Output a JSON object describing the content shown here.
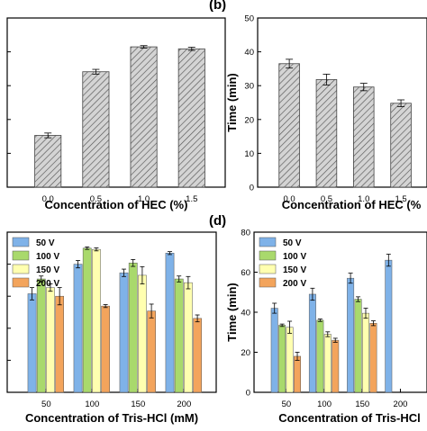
{
  "chart_data": [
    {
      "panel": "a",
      "type": "bar",
      "panel_label": "",
      "xlabel": "Concentration of HEC (%)",
      "ylabel": "",
      "categories": [
        "0.0",
        "0.5",
        "1.0",
        "1.5"
      ],
      "values": [
        2.6,
        5.8,
        7.05,
        6.95
      ],
      "errors": [
        0.12,
        0.12,
        0.06,
        0.08
      ],
      "ylim": [
        0,
        8.5
      ],
      "yticks": [],
      "fill": "hatched-gray"
    },
    {
      "panel": "b",
      "type": "bar",
      "panel_label": "(b)",
      "xlabel": "Concentration of HEC (%",
      "ylabel": "Time (min)",
      "categories": [
        "0.0",
        "0.5",
        "1.0",
        "1.5"
      ],
      "values": [
        36.5,
        31.8,
        29.6,
        24.8
      ],
      "errors": [
        1.3,
        1.6,
        1.1,
        1.0
      ],
      "ylim": [
        0,
        50
      ],
      "yticks": [
        "0",
        "10",
        "20",
        "30",
        "40",
        "50"
      ],
      "fill": "hatched-gray"
    },
    {
      "panel": "c",
      "type": "bar",
      "panel_label": "",
      "xlabel": "Concentration of Tris-HCl (mM)",
      "ylabel": "",
      "categories": [
        "50",
        "100",
        "150",
        "200"
      ],
      "series": [
        {
          "name": "50 V",
          "color": "#7fb2e8",
          "values": [
            4.0,
            5.2,
            4.85,
            5.65
          ],
          "errors": [
            0.25,
            0.15,
            0.15,
            0.06
          ]
        },
        {
          "name": "100 V",
          "color": "#a9d96c",
          "values": [
            4.6,
            5.85,
            5.25,
            4.6
          ],
          "errors": [
            0.12,
            0.05,
            0.14,
            0.12
          ]
        },
        {
          "name": "150 V",
          "color": "#ffffb0",
          "values": [
            4.25,
            5.8,
            4.75,
            4.45
          ],
          "errors": [
            0.15,
            0.06,
            0.35,
            0.25
          ]
        },
        {
          "name": "200 V",
          "color": "#f3a45c",
          "values": [
            3.9,
            3.5,
            3.3,
            3.0
          ],
          "errors": [
            0.35,
            0.06,
            0.28,
            0.14
          ]
        }
      ],
      "ylim": [
        0,
        6.5
      ],
      "yticks": [],
      "legend_position": "top-left"
    },
    {
      "panel": "d",
      "type": "bar",
      "panel_label": "(d)",
      "xlabel": "Concentration of Tris-HCl",
      "ylabel": "Time (min)",
      "categories": [
        "50",
        "100",
        "150",
        "200"
      ],
      "series": [
        {
          "name": "50 V",
          "color": "#7fb2e8",
          "values": [
            42.0,
            49.0,
            57.0,
            66.0
          ],
          "errors": [
            2.5,
            3.0,
            2.5,
            3.0
          ]
        },
        {
          "name": "100 V",
          "color": "#a9d96c",
          "values": [
            33.5,
            36.0,
            46.5,
            null
          ],
          "errors": [
            0.6,
            0.6,
            1.2,
            null
          ]
        },
        {
          "name": "150 V",
          "color": "#ffffb0",
          "values": [
            32.5,
            29.0,
            39.5,
            null
          ],
          "errors": [
            3.0,
            1.2,
            2.5,
            null
          ]
        },
        {
          "name": "200 V",
          "color": "#f3a45c",
          "values": [
            18.0,
            26.0,
            34.5,
            null
          ],
          "errors": [
            2.0,
            1.0,
            1.2,
            null
          ]
        }
      ],
      "ylim": [
        0,
        80
      ],
      "yticks": [
        "0",
        "20",
        "40",
        "60",
        "80"
      ],
      "legend_position": "top-left"
    }
  ]
}
